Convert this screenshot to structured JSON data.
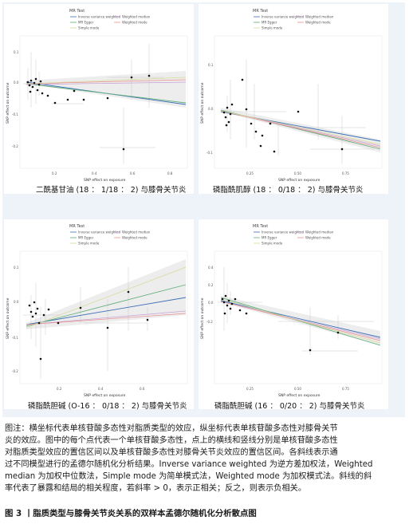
{
  "legend": {
    "title": "MR Test",
    "entries": [
      {
        "label": "Inverse variance weighted",
        "color": "#3d6fb5"
      },
      {
        "label": "Weighted median",
        "color": "#c7a0d6"
      },
      {
        "label": "MR Egger",
        "color": "#5fae7a"
      },
      {
        "label": "Weighted mode",
        "color": "#e88e8e"
      },
      {
        "label": "Simple mode",
        "color": "#d8d89a"
      }
    ]
  },
  "axis_titles": {
    "x": "SNP effect on exposure",
    "y": "SNP effect on outcome"
  },
  "panels": [
    {
      "caption": "二酰基甘油 (18 ： 1/18 ： 2) 与膝骨关节炎",
      "x_ticks": [
        "0.2",
        "0.4",
        "0.6",
        "0.8"
      ],
      "y_ticks": [
        "0.1",
        "0.0",
        "-0.1",
        "-0.2"
      ]
    },
    {
      "caption": "磷脂酰肌醇 (18 ： 0/18 ： 2) 与膝骨关节炎",
      "x_ticks": [
        "0.25",
        "0.50",
        "0.75"
      ],
      "y_ticks": [
        "0.1",
        "0.0",
        "-0.1"
      ]
    },
    {
      "caption": "磷脂酰胆碱 (O-16 ： 0/18 ： 2) 与膝骨关节炎",
      "x_ticks": [
        "0.2",
        "0.4",
        "0.6"
      ],
      "y_ticks": [
        "0.1",
        "0.0",
        "-0.1",
        "-0.2"
      ]
    },
    {
      "caption": "磷脂酰胆碱 (16 ： 0/20 ： 2) 与膝骨关节炎",
      "x_ticks": [
        "0.25",
        "0.50",
        "0.75"
      ],
      "y_ticks": [
        "0.4",
        "0.2",
        "0.0",
        "-0.2"
      ]
    }
  ],
  "figure_note": {
    "line1": "图注：横坐标代表单核苷酸多态性对脂质类型的效应，纵坐标代表单核苷酸多态性对膝骨关节",
    "line2": "炎的效应。图中的每个点代表一个单核苷酸多态性，点上的横线和竖线分别是单核苷酸多态性",
    "line3": "对脂质类型效应的置信区间以及单核苷酸多态性对膝骨关节炎效应的置信区间。各斜线表示通",
    "line4": "过不同模型进行的孟德尔随机化分析结果。Inverse variance weighted 为逆方差加权法，Weighted",
    "line5": "median 为加权中位数法，Simple mode 为简单模式法，Weighted mode 为加权模式法。斜线的斜",
    "line6": "率代表了暴露和结局的相关程度，若斜率 > 0，表示正相关；反之，则表示负相关。"
  },
  "figure_title": "图 3 丨脂质类型与膝骨关节炎关系的双样本孟德尔随机化分析散点图"
}
